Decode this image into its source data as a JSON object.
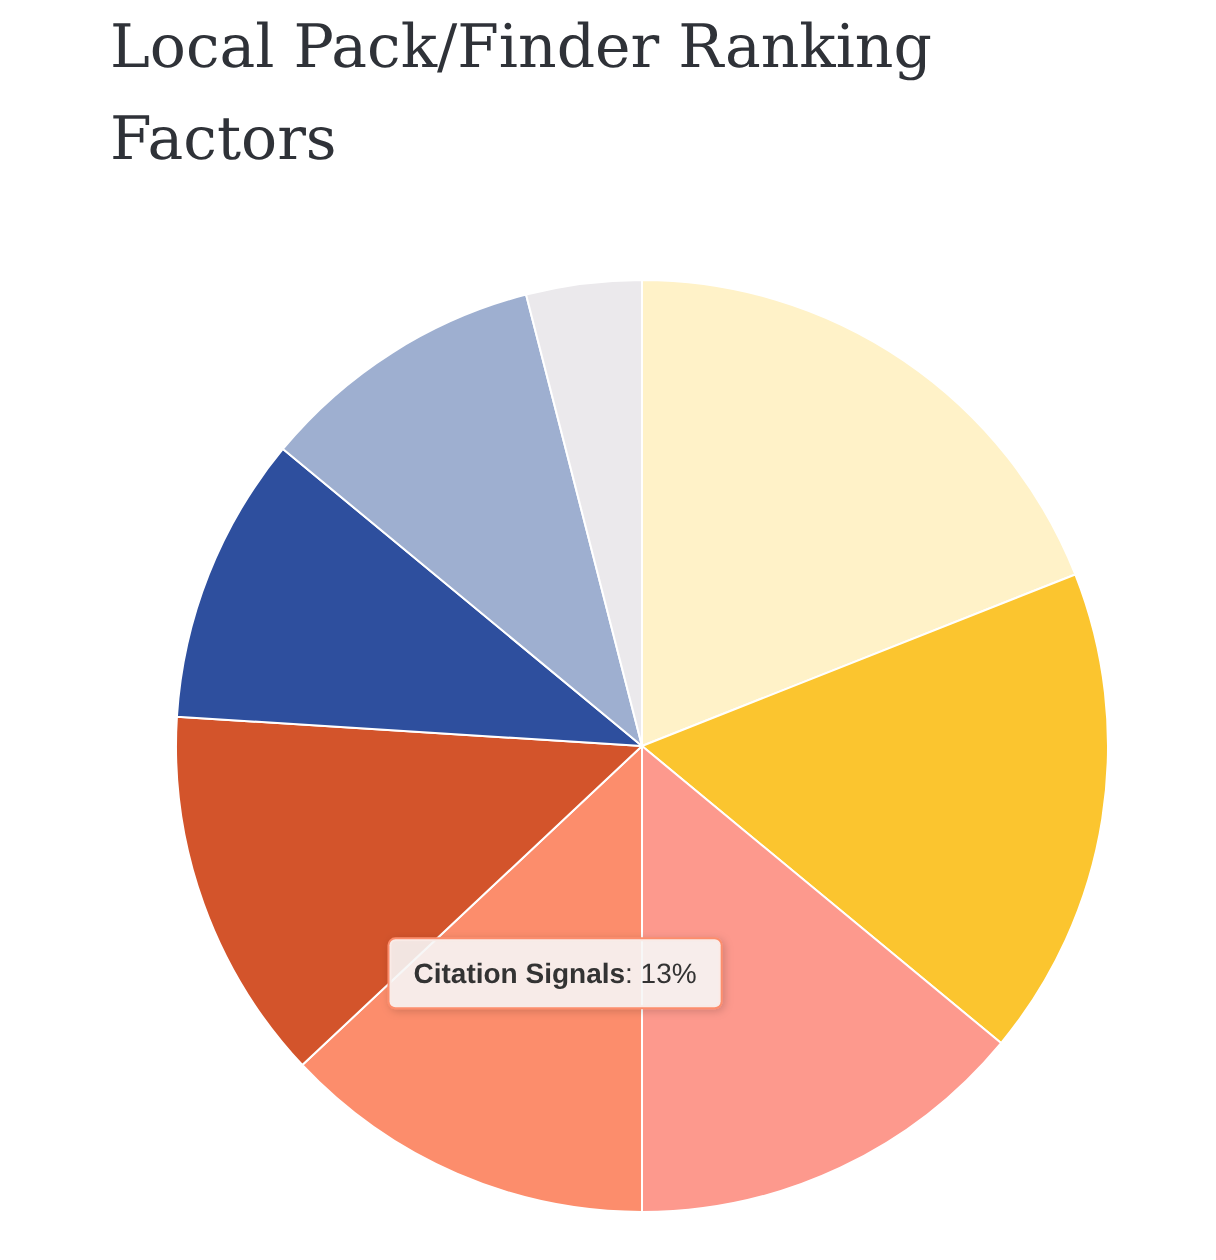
{
  "chart_data": {
    "type": "pie",
    "title": "Local Pack/Finder Ranking Factors",
    "categories": [
      null,
      null,
      null,
      "Citation Signals",
      null,
      null,
      null,
      null
    ],
    "values": [
      19,
      17,
      14,
      13,
      13,
      10,
      10,
      4
    ],
    "value_labels": [
      null,
      null,
      null,
      ": 13%",
      null,
      null,
      null,
      null
    ],
    "colors": [
      "#fff2c8",
      "#fbc52f",
      "#fd998d",
      "#fc8d6c",
      "#d3542b",
      "#2e4f9e",
      "#9eafd0",
      "#ebe9ec"
    ]
  }
}
